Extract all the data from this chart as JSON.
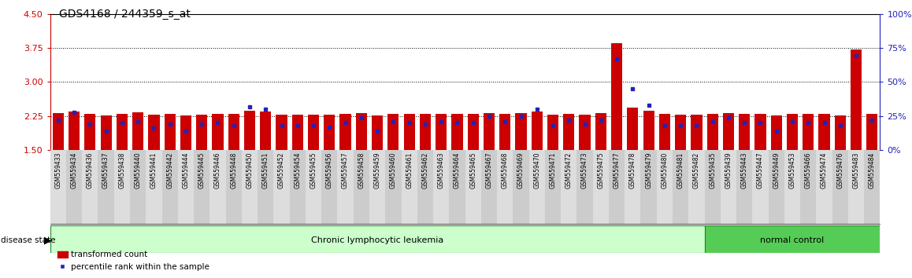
{
  "title": "GDS4168 / 244359_s_at",
  "samples": [
    "GSM559433",
    "GSM559434",
    "GSM559436",
    "GSM559437",
    "GSM559438",
    "GSM559440",
    "GSM559441",
    "GSM559442",
    "GSM559444",
    "GSM559445",
    "GSM559446",
    "GSM559448",
    "GSM559450",
    "GSM559451",
    "GSM559452",
    "GSM559454",
    "GSM559455",
    "GSM559456",
    "GSM559457",
    "GSM559458",
    "GSM559459",
    "GSM559460",
    "GSM559461",
    "GSM559462",
    "GSM559463",
    "GSM559464",
    "GSM559465",
    "GSM559467",
    "GSM559468",
    "GSM559469",
    "GSM559470",
    "GSM559471",
    "GSM559472",
    "GSM559473",
    "GSM559475",
    "GSM559477",
    "GSM559478",
    "GSM559479",
    "GSM559480",
    "GSM559481",
    "GSM559482",
    "GSM559435",
    "GSM559439",
    "GSM559443",
    "GSM559447",
    "GSM559449",
    "GSM559453",
    "GSM559466",
    "GSM559474",
    "GSM559476",
    "GSM559483",
    "GSM559484"
  ],
  "red_values": [
    2.31,
    2.35,
    2.29,
    2.27,
    2.3,
    2.33,
    2.28,
    2.3,
    2.27,
    2.28,
    2.3,
    2.29,
    2.37,
    2.35,
    2.28,
    2.28,
    2.28,
    2.28,
    2.3,
    2.32,
    2.26,
    2.3,
    2.29,
    2.29,
    2.3,
    2.3,
    2.3,
    2.32,
    2.3,
    2.32,
    2.35,
    2.28,
    2.3,
    2.28,
    2.31,
    3.85,
    2.43,
    2.36,
    2.29,
    2.28,
    2.28,
    2.3,
    2.32,
    2.29,
    2.29,
    2.26,
    2.3,
    2.3,
    2.29,
    2.27,
    3.72,
    2.3
  ],
  "blue_values": [
    22,
    28,
    19,
    14,
    20,
    21,
    16,
    19,
    14,
    19,
    20,
    18,
    32,
    30,
    18,
    18,
    18,
    17,
    20,
    24,
    14,
    21,
    20,
    19,
    21,
    20,
    20,
    25,
    21,
    25,
    30,
    18,
    22,
    19,
    22,
    67,
    45,
    33,
    18,
    18,
    18,
    21,
    24,
    20,
    20,
    14,
    21,
    20,
    20,
    18,
    69,
    22
  ],
  "disease_groups": [
    {
      "label": "Chronic lymphocytic leukemia",
      "start": 0,
      "end": 40,
      "color": "#ccffcc"
    },
    {
      "label": "normal control",
      "start": 41,
      "end": 51,
      "color": "#55cc55"
    }
  ],
  "ylim_left": [
    1.5,
    4.5
  ],
  "ylim_right": [
    0,
    100
  ],
  "yticks_left": [
    1.5,
    2.25,
    3.0,
    3.75,
    4.5
  ],
  "yticks_right": [
    0,
    25,
    50,
    75,
    100
  ],
  "hlines": [
    2.25,
    3.0,
    3.75
  ],
  "bar_color_red": "#cc0000",
  "bar_color_blue": "#2222bb",
  "title_fontsize": 10,
  "axis_label_color_left": "#cc0000",
  "axis_label_color_right": "#2222bb",
  "xtick_bg_color": "#cccccc",
  "bar_width": 0.7
}
